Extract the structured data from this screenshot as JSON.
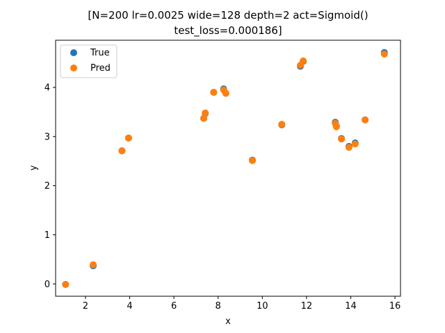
{
  "chart_data": {
    "type": "scatter",
    "title_lines": [
      "[N=200 lr=0.0025 wide=128 depth=2 act=Sigmoid()",
      "test_loss=0.000186]"
    ],
    "xlabel": "x",
    "ylabel": "y",
    "xlim": [
      0.65,
      16.25
    ],
    "ylim": [
      -0.25,
      4.96
    ],
    "xticks": [
      2,
      4,
      6,
      8,
      10,
      12,
      14,
      16
    ],
    "yticks": [
      0,
      1,
      2,
      3,
      4
    ],
    "legend_position": "upper-left",
    "grid": false,
    "series": [
      {
        "name": "True",
        "color": "#1f77b4",
        "x": [
          1.1,
          2.35,
          3.65,
          3.95,
          7.35,
          7.42,
          7.8,
          8.25,
          8.35,
          9.55,
          10.88,
          11.72,
          11.85,
          13.3,
          13.35,
          13.58,
          13.92,
          14.2,
          14.65,
          15.52
        ],
        "y": [
          -0.01,
          0.37,
          2.71,
          2.97,
          3.37,
          3.47,
          3.9,
          3.97,
          3.88,
          2.52,
          3.24,
          4.43,
          4.53,
          3.29,
          3.21,
          2.96,
          2.8,
          2.87,
          3.34,
          4.71
        ]
      },
      {
        "name": "Pred",
        "color": "#ff7f0e",
        "x": [
          1.1,
          2.35,
          3.65,
          3.95,
          7.35,
          7.42,
          7.8,
          8.25,
          8.35,
          9.55,
          10.88,
          11.72,
          11.85,
          13.3,
          13.35,
          13.58,
          13.92,
          14.2,
          14.65,
          15.52
        ],
        "y": [
          -0.01,
          0.39,
          2.71,
          2.97,
          3.37,
          3.48,
          3.9,
          3.95,
          3.88,
          2.51,
          3.25,
          4.45,
          4.54,
          3.27,
          3.2,
          2.95,
          2.78,
          2.85,
          3.34,
          4.68
        ]
      }
    ]
  }
}
